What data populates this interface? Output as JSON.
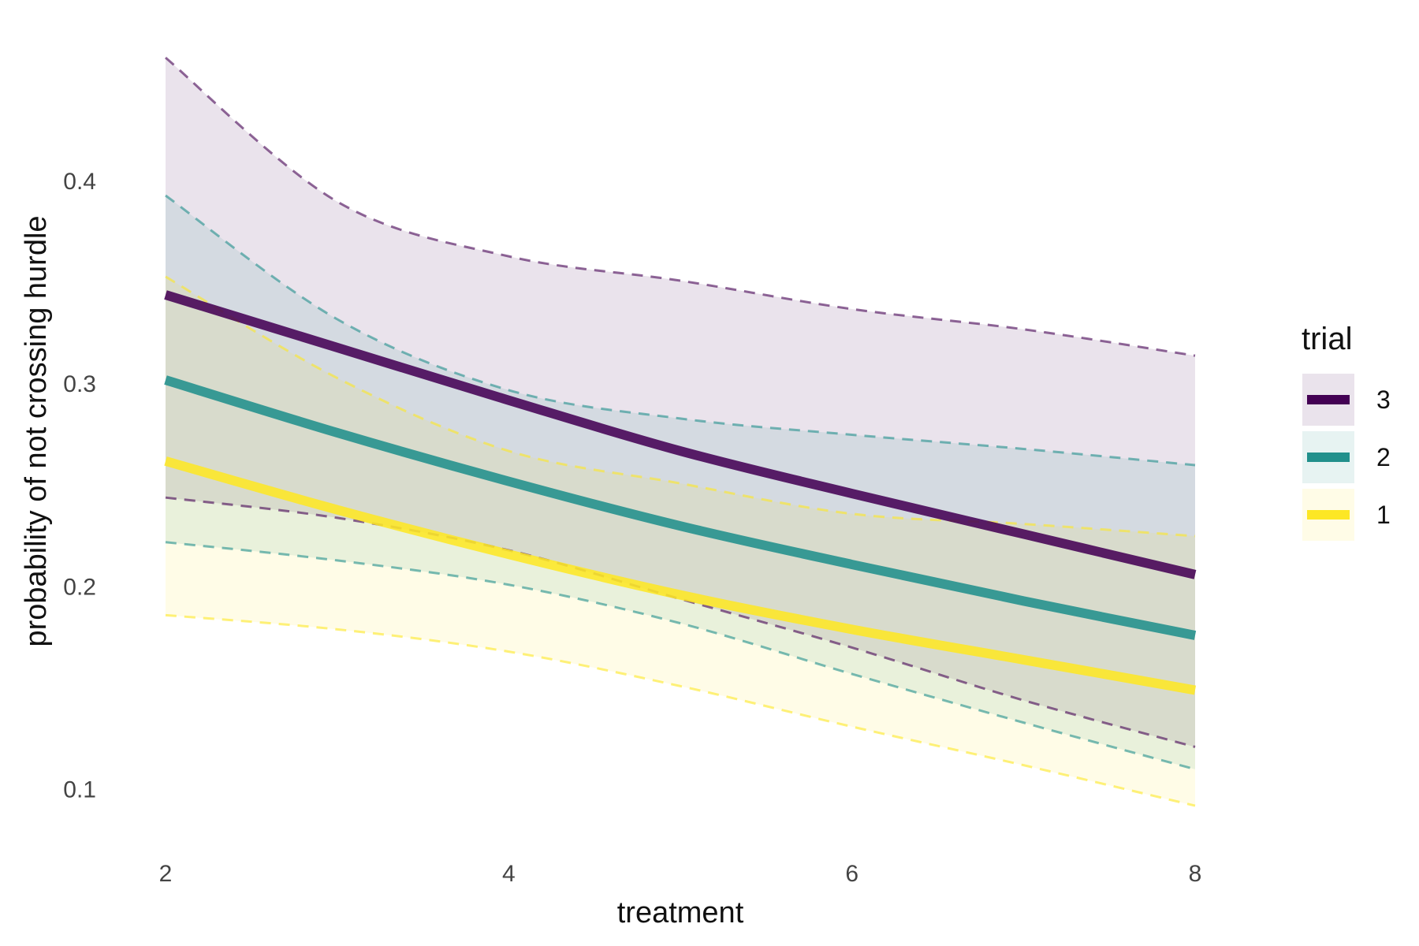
{
  "chart_data": {
    "type": "line",
    "xlabel": "treatment",
    "ylabel": "probability of not crossing hurdle",
    "xlim": [
      2,
      8
    ],
    "ylim": [
      0.08,
      0.48
    ],
    "x_ticks": [
      2,
      4,
      6,
      8
    ],
    "y_ticks": [
      0.1,
      0.2,
      0.3,
      0.4
    ],
    "grid": false,
    "legend": {
      "title": "trial",
      "position": "right"
    },
    "x": [
      2,
      3,
      4,
      5,
      6,
      7,
      8
    ],
    "series": [
      {
        "name": "3",
        "color": "#440154",
        "values": [
          0.344,
          0.318,
          0.292,
          0.267,
          0.246,
          0.226,
          0.206
        ],
        "lower": [
          0.244,
          0.234,
          0.218,
          0.194,
          0.17,
          0.144,
          0.121
        ],
        "upper": [
          0.461,
          0.39,
          0.363,
          0.351,
          0.337,
          0.327,
          0.314
        ]
      },
      {
        "name": "2",
        "color": "#21908C",
        "values": [
          0.302,
          0.276,
          0.252,
          0.23,
          0.211,
          0.193,
          0.176
        ],
        "lower": [
          0.222,
          0.213,
          0.201,
          0.182,
          0.157,
          0.133,
          0.11
        ],
        "upper": [
          0.393,
          0.332,
          0.297,
          0.283,
          0.275,
          0.268,
          0.26
        ]
      },
      {
        "name": "1",
        "color": "#FDE725",
        "values": [
          0.262,
          0.238,
          0.216,
          0.196,
          0.179,
          0.164,
          0.149
        ],
        "lower": [
          0.186,
          0.179,
          0.168,
          0.151,
          0.131,
          0.112,
          0.092
        ],
        "upper": [
          0.353,
          0.303,
          0.267,
          0.251,
          0.236,
          0.231,
          0.225
        ]
      }
    ]
  }
}
